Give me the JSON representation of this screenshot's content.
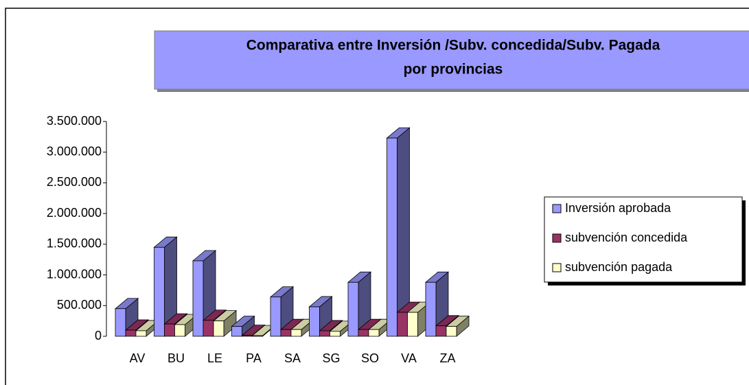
{
  "chart_data": {
    "type": "bar3d",
    "title": "Comparativa entre Inversión /Subv. concedida/Subv. Pagada",
    "subtitle": "por provincias",
    "categories": [
      "AV",
      "BU",
      "LE",
      "PA",
      "SA",
      "SG",
      "SO",
      "VA",
      "ZA"
    ],
    "series": [
      {
        "name": "Inversión aprobada",
        "color": "#9999ff",
        "values": [
          450000,
          1450000,
          1230000,
          160000,
          640000,
          480000,
          880000,
          3230000,
          880000
        ]
      },
      {
        "name": "subvención concedida",
        "color": "#993366",
        "values": [
          100000,
          200000,
          260000,
          15000,
          110000,
          90000,
          110000,
          390000,
          170000
        ]
      },
      {
        "name": "subvención pagada",
        "color": "#ffffcc",
        "values": [
          90000,
          190000,
          250000,
          10000,
          110000,
          80000,
          110000,
          390000,
          160000
        ]
      }
    ],
    "ylim": [
      0,
      3500000
    ],
    "yticks": [
      0,
      {
        "value": 500000,
        "label": "500.000"
      },
      {
        "value": 1000000,
        "label": "1.000.000"
      },
      {
        "value": 1500000,
        "label": "1.500.000"
      },
      {
        "value": 2000000,
        "label": "2.000.000"
      },
      {
        "value": 2500000,
        "label": "2.500.000"
      },
      {
        "value": 3000000,
        "label": "3.000.000"
      },
      {
        "value": 3500000,
        "label": "3.500.000"
      }
    ],
    "legend": "right"
  }
}
